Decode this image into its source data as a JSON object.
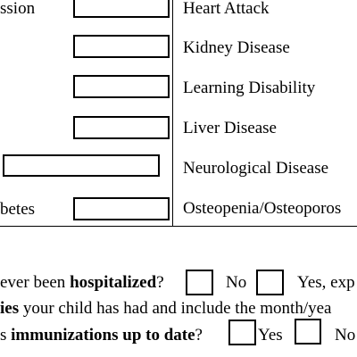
{
  "left_column": {
    "row1_label": "ssion",
    "row6_label": "betes"
  },
  "right_column": {
    "conditions": [
      "Heart Attack",
      "Kidney Disease",
      "Learning Disability",
      "Liver Disease",
      "Neurological Disease",
      "Osteopenia/Osteoporos"
    ]
  },
  "questions": {
    "hospitalized": {
      "prefix": "ever been ",
      "bold": "hospitalized",
      "suffix": "?",
      "no_label": "No",
      "yes_label": "Yes, exp"
    },
    "illnesses": {
      "bold": "ies",
      "rest": " your child has had and include the month/yea"
    },
    "immunizations": {
      "prefix": "s ",
      "bold": "immunizations up to date",
      "suffix": "?",
      "yes_label": "Yes",
      "no_label": "No"
    }
  }
}
